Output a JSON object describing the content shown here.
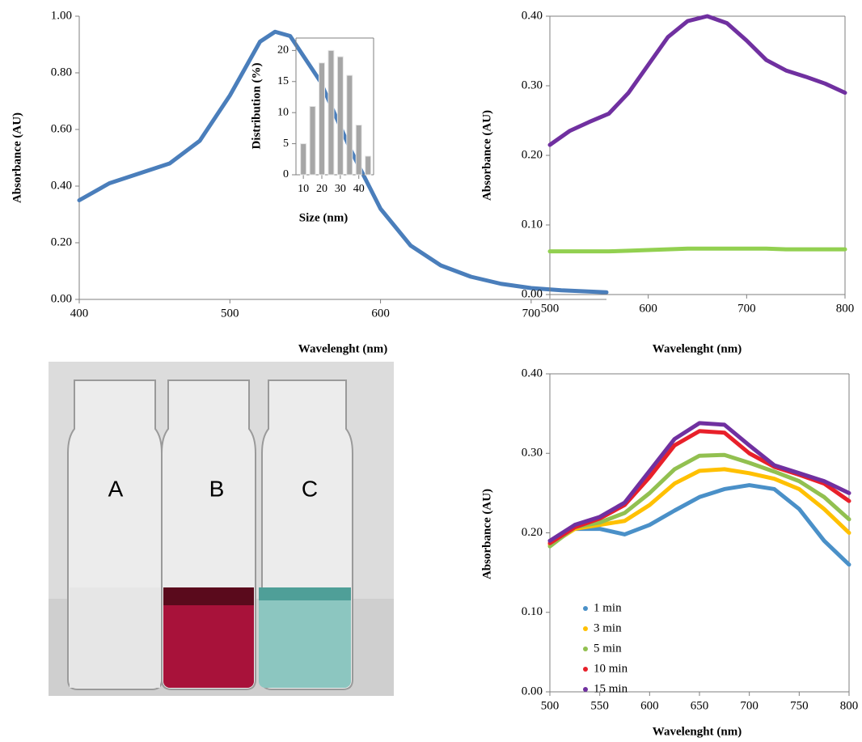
{
  "chart_data": [
    {
      "type": "line",
      "x_label": "Wavelenght (nm)",
      "y_label": "Absorbance  (AU)",
      "x": [
        400,
        420,
        440,
        460,
        480,
        500,
        520,
        530,
        540,
        560,
        580,
        600,
        620,
        640,
        660,
        680,
        700,
        720,
        750
      ],
      "series": [
        {
          "color": "#4a7ebb",
          "values": [
            0.35,
            0.41,
            0.445,
            0.48,
            0.56,
            0.72,
            0.91,
            0.945,
            0.93,
            0.77,
            0.53,
            0.32,
            0.19,
            0.12,
            0.08,
            0.055,
            0.04,
            0.032,
            0.025
          ]
        }
      ],
      "xlim": [
        400,
        750
      ],
      "xticks": [
        400,
        500,
        600,
        700
      ],
      "ylim": [
        0,
        1
      ],
      "yticks": [
        {
          "value": 0,
          "label": "0.00"
        },
        {
          "value": 0.2,
          "label": "0.20"
        },
        {
          "value": 0.4,
          "label": "0.40"
        },
        {
          "value": 0.6,
          "label": "0.60"
        },
        {
          "value": 0.8,
          "label": "0.80"
        },
        {
          "value": 1,
          "label": "1.00"
        }
      ],
      "box": false
    },
    {
      "type": "bar",
      "x_label": "Size (nm)",
      "y_label": "Distribution (%)",
      "x": [
        10,
        15,
        20,
        25,
        30,
        35,
        40,
        45
      ],
      "values": [
        5,
        11,
        18,
        20,
        19,
        16,
        8,
        3
      ],
      "color": "#a6a6a6",
      "xlim": [
        6,
        48
      ],
      "xticks": [
        10,
        20,
        30,
        40
      ],
      "ylim": [
        0,
        22
      ],
      "yticks": [
        0,
        5,
        10,
        15,
        20
      ],
      "box": true
    },
    {
      "type": "line",
      "x_label": "Wavelenght (nm)",
      "y_label": "Absorbance  (AU)",
      "x": [
        500,
        520,
        540,
        560,
        580,
        600,
        620,
        640,
        660,
        680,
        700,
        720,
        740,
        760,
        780,
        800
      ],
      "series": [
        {
          "color": "#7030a0",
          "values": [
            0.215,
            0.235,
            0.248,
            0.26,
            0.29,
            0.33,
            0.37,
            0.393,
            0.4,
            0.39,
            0.365,
            0.337,
            0.322,
            0.313,
            0.303,
            0.29
          ]
        },
        {
          "color": "#92d050",
          "values": [
            0.062,
            0.062,
            0.062,
            0.062,
            0.063,
            0.064,
            0.065,
            0.066,
            0.066,
            0.066,
            0.066,
            0.066,
            0.065,
            0.065,
            0.065,
            0.065
          ]
        }
      ],
      "xlim": [
        500,
        800
      ],
      "xticks": [
        500,
        600,
        700,
        800
      ],
      "ylim": [
        0,
        0.4
      ],
      "yticks": [
        {
          "value": 0,
          "label": "0.00"
        },
        {
          "value": 0.1,
          "label": "0.10"
        },
        {
          "value": 0.2,
          "label": "0.20"
        },
        {
          "value": 0.3,
          "label": "0.30"
        },
        {
          "value": 0.4,
          "label": "0.40"
        }
      ],
      "box": true
    },
    {
      "type": "line",
      "x_label": "Wavelenght (nm)",
      "y_label": "Absorbance  (AU)",
      "x": [
        500,
        525,
        550,
        575,
        600,
        625,
        650,
        675,
        700,
        725,
        750,
        775,
        800
      ],
      "series": [
        {
          "name": "1 min",
          "color": "#4a90c8",
          "values": [
            0.19,
            0.205,
            0.205,
            0.198,
            0.21,
            0.228,
            0.245,
            0.255,
            0.26,
            0.255,
            0.23,
            0.19,
            0.16
          ]
        },
        {
          "name": "3 min",
          "color": "#ffc000",
          "values": [
            0.185,
            0.205,
            0.21,
            0.215,
            0.235,
            0.262,
            0.278,
            0.28,
            0.275,
            0.268,
            0.255,
            0.23,
            0.2
          ]
        },
        {
          "name": "5 min",
          "color": "#92c050",
          "values": [
            0.183,
            0.207,
            0.213,
            0.225,
            0.25,
            0.28,
            0.297,
            0.298,
            0.288,
            0.277,
            0.265,
            0.245,
            0.217
          ]
        },
        {
          "name": "10 min",
          "color": "#e8202a",
          "values": [
            0.187,
            0.207,
            0.218,
            0.235,
            0.27,
            0.31,
            0.328,
            0.326,
            0.3,
            0.283,
            0.273,
            0.262,
            0.24
          ]
        },
        {
          "name": "15 min",
          "color": "#7030a0",
          "values": [
            0.19,
            0.21,
            0.22,
            0.238,
            0.278,
            0.318,
            0.338,
            0.336,
            0.31,
            0.285,
            0.275,
            0.265,
            0.25
          ]
        }
      ],
      "xlim": [
        500,
        800
      ],
      "xticks": [
        500,
        550,
        600,
        650,
        700,
        750,
        800
      ],
      "ylim": [
        0,
        0.4
      ],
      "yticks": [
        {
          "value": 0,
          "label": "0.00"
        },
        {
          "value": 0.1,
          "label": "0.10"
        },
        {
          "value": 0.2,
          "label": "0.20"
        },
        {
          "value": 0.3,
          "label": "0.30"
        },
        {
          "value": 0.4,
          "label": "0.40"
        }
      ],
      "box": true
    }
  ],
  "photo": {
    "labels": [
      "A",
      "B",
      "C"
    ]
  }
}
